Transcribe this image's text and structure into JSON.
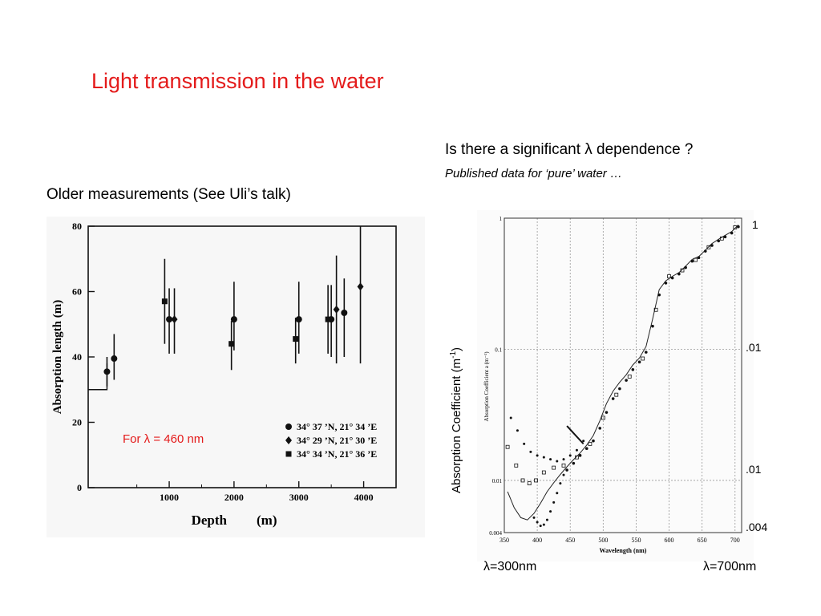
{
  "slide": {
    "title": "Light transmission in the water",
    "question": "Is there a significant λ dependence ?",
    "note": "Published data for ‘pure’ water …",
    "left_caption": "Older measurements (See Uli’s talk)"
  },
  "colors": {
    "title": "#e41b1b",
    "annotation": "#e41b1b",
    "text": "#000000"
  },
  "chart_data": [
    {
      "type": "scatter",
      "xlabel": "Depth",
      "xlabel_unit": "(m)",
      "ylabel": "Absorption length (m)",
      "xlim": [
        -250,
        4500
      ],
      "ylim": [
        0,
        80
      ],
      "x_ticks": [
        "1000",
        "2000",
        "3000",
        "4000"
      ],
      "y_ticks": [
        "0",
        "20",
        "40",
        "60",
        "80"
      ],
      "annotation": "For λ = 460 nm",
      "legend_position": "bottom-right",
      "series": [
        {
          "name": "34° 37 ’N, 21° 34 ’E",
          "marker": "circle",
          "points": [
            {
              "x": 40,
              "y": 35.5,
              "lo": 31,
              "hi": 40
            },
            {
              "x": 150,
              "y": 39.5,
              "lo": 33,
              "hi": 47
            },
            {
              "x": 1000,
              "y": 51.5,
              "lo": 41,
              "hi": 61
            },
            {
              "x": 2000,
              "y": 51.5,
              "lo": 42,
              "hi": 63
            },
            {
              "x": 3000,
              "y": 51.5,
              "lo": 41,
              "hi": 63
            },
            {
              "x": 3500,
              "y": 51.5,
              "lo": 40,
              "hi": 62
            },
            {
              "x": 3700,
              "y": 53.5,
              "lo": 40,
              "hi": 64
            }
          ]
        },
        {
          "name": "34° 29 ’N, 21° 30 ’E",
          "marker": "diamond",
          "points": [
            {
              "x": 1080,
              "y": 51.5,
              "lo": 41,
              "hi": 61
            },
            {
              "x": 3580,
              "y": 54.5,
              "lo": 38,
              "hi": 71
            },
            {
              "x": 3950,
              "y": 61.5,
              "lo": 38,
              "hi": 80
            }
          ]
        },
        {
          "name": "34° 34 ’N, 21° 36 ’E",
          "marker": "square",
          "points": [
            {
              "x": 930,
              "y": 57,
              "lo": 44,
              "hi": 70
            },
            {
              "x": 1960,
              "y": 44,
              "lo": 36,
              "hi": 51
            },
            {
              "x": 2950,
              "y": 45.5,
              "lo": 38,
              "hi": 52
            },
            {
              "x": 3450,
              "y": 51.5,
              "lo": 41,
              "hi": 62
            }
          ]
        }
      ]
    },
    {
      "type": "scatter",
      "xlabel": "Wavelength (nm)",
      "ylabel": "Absorption Coefficient a (m⁻¹)",
      "side_ylabel_main": "Absorption Coefficient (m",
      "side_ylabel_sup": "-1",
      "side_ylabel_end": ")",
      "y_scale": "log",
      "xlim": [
        350,
        710
      ],
      "ylim": [
        0.004,
        1
      ],
      "x_ticks": [
        "350",
        "400",
        "450",
        "500",
        "550",
        "600",
        "650",
        "700"
      ],
      "y_ticks": [
        "0.004",
        "0.01",
        "0.1",
        "1"
      ],
      "right_labels": [
        "1",
        ".01",
        ".01",
        ".004"
      ],
      "bottom_labels": [
        "λ=300nm",
        "λ=700nm"
      ],
      "grid": true,
      "series": [
        {
          "marker": "line",
          "points": [
            [
              355,
              0.0082
            ],
            [
              365,
              0.0062
            ],
            [
              375,
              0.0052
            ],
            [
              385,
              0.005
            ],
            [
              395,
              0.0056
            ],
            [
              405,
              0.0067
            ],
            [
              415,
              0.0082
            ],
            [
              425,
              0.0096
            ],
            [
              435,
              0.0111
            ],
            [
              445,
              0.0127
            ],
            [
              455,
              0.0144
            ],
            [
              465,
              0.0162
            ],
            [
              475,
              0.0186
            ],
            [
              485,
              0.022
            ],
            [
              495,
              0.0285
            ],
            [
              505,
              0.0385
            ],
            [
              515,
              0.048
            ],
            [
              525,
              0.056
            ],
            [
              535,
              0.064
            ],
            [
              545,
              0.076
            ],
            [
              555,
              0.086
            ],
            [
              565,
              0.105
            ],
            [
              575,
              0.17
            ],
            [
              585,
              0.285
            ],
            [
              595,
              0.333
            ],
            [
              605,
              0.36
            ],
            [
              615,
              0.385
            ],
            [
              625,
              0.43
            ],
            [
              635,
              0.485
            ],
            [
              645,
              0.51
            ],
            [
              655,
              0.57
            ],
            [
              665,
              0.64
            ],
            [
              675,
              0.69
            ],
            [
              685,
              0.74
            ],
            [
              695,
              0.79
            ],
            [
              705,
              0.89
            ]
          ]
        },
        {
          "marker": "dots-upper",
          "points": [
            [
              360,
              0.03
            ],
            [
              370,
              0.024
            ],
            [
              380,
              0.019
            ],
            [
              390,
              0.0165
            ],
            [
              400,
              0.0155
            ],
            [
              410,
              0.015
            ],
            [
              420,
              0.0145
            ],
            [
              430,
              0.014
            ],
            [
              440,
              0.0145
            ],
            [
              450,
              0.0155
            ],
            [
              460,
              0.017
            ],
            [
              470,
              0.02
            ]
          ]
        },
        {
          "marker": "dots-lower",
          "points": [
            [
              395,
              0.0052
            ],
            [
              400,
              0.0048
            ],
            [
              405,
              0.0045
            ],
            [
              410,
              0.0046
            ],
            [
              415,
              0.005
            ],
            [
              420,
              0.0058
            ],
            [
              425,
              0.0068
            ],
            [
              430,
              0.008
            ],
            [
              435,
              0.0095
            ],
            [
              440,
              0.011
            ]
          ]
        },
        {
          "marker": "dots",
          "points": [
            [
              445,
              0.012
            ],
            [
              455,
              0.0135
            ],
            [
              465,
              0.0155
            ],
            [
              475,
              0.0175
            ],
            [
              485,
              0.02
            ],
            [
              495,
              0.025
            ],
            [
              505,
              0.033
            ],
            [
              515,
              0.042
            ],
            [
              525,
              0.05
            ],
            [
              535,
              0.058
            ],
            [
              545,
              0.07
            ],
            [
              555,
              0.08
            ],
            [
              565,
              0.095
            ],
            [
              575,
              0.15
            ],
            [
              585,
              0.26
            ],
            [
              595,
              0.32
            ],
            [
              605,
              0.35
            ],
            [
              615,
              0.375
            ],
            [
              625,
              0.42
            ],
            [
              635,
              0.47
            ],
            [
              645,
              0.5
            ],
            [
              655,
              0.56
            ],
            [
              665,
              0.62
            ],
            [
              675,
              0.67
            ],
            [
              685,
              0.72
            ],
            [
              695,
              0.77
            ],
            [
              705,
              0.86
            ]
          ]
        },
        {
          "marker": "square",
          "points": [
            [
              355,
              0.018
            ],
            [
              368,
              0.013
            ],
            [
              378,
              0.01
            ],
            [
              388,
              0.0095
            ],
            [
              398,
              0.01
            ],
            [
              410,
              0.0115
            ],
            [
              425,
              0.0125
            ],
            [
              440,
              0.013
            ],
            [
              460,
              0.015
            ],
            [
              480,
              0.019
            ],
            [
              500,
              0.03
            ],
            [
              520,
              0.045
            ],
            [
              540,
              0.062
            ],
            [
              560,
              0.085
            ],
            [
              580,
              0.2
            ],
            [
              600,
              0.36
            ],
            [
              620,
              0.4
            ],
            [
              640,
              0.48
            ],
            [
              660,
              0.6
            ],
            [
              680,
              0.7
            ],
            [
              700,
              0.85
            ]
          ]
        }
      ]
    }
  ]
}
